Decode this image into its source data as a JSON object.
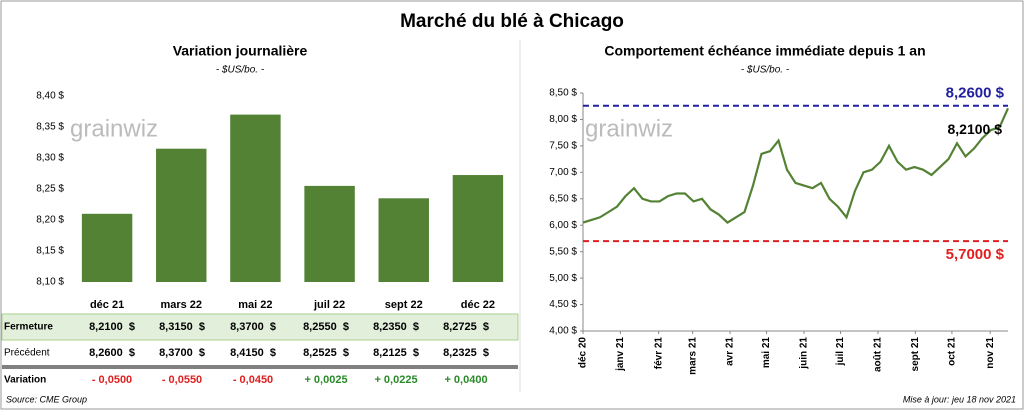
{
  "title": "Marché du blé à Chicago",
  "watermark": "grainwiz",
  "source": "Source: CME Group",
  "updated": "Mise à jour: jeu 18 nov 2021",
  "chart_data": [
    {
      "type": "bar",
      "title": "Variation journalière",
      "subtitle": "- $US/bo. -",
      "categories": [
        "déc 21",
        "mars 22",
        "mai 22",
        "juil 22",
        "sept 22",
        "déc 22"
      ],
      "values": [
        8.21,
        8.315,
        8.37,
        8.255,
        8.235,
        8.2725
      ],
      "color": "#548235",
      "ylim": [
        8.1,
        8.4
      ],
      "yticks": [
        {
          "value": 8.1,
          "label": "8,10 $"
        },
        {
          "value": 8.15,
          "label": "8,15 $"
        },
        {
          "value": 8.2,
          "label": "8,20 $"
        },
        {
          "value": 8.25,
          "label": "8,25 $"
        },
        {
          "value": 8.3,
          "label": "8,30 $"
        },
        {
          "value": 8.35,
          "label": "8,35 $"
        },
        {
          "value": 8.4,
          "label": "8,40 $"
        }
      ]
    },
    {
      "type": "line",
      "title": "Comportement  échéance immédiate depuis 1 an",
      "subtitle": "- $US/bo. -",
      "series": [
        {
          "color": "#548235",
          "values": [
            6.05,
            6.1,
            6.15,
            6.25,
            6.35,
            6.55,
            6.7,
            6.5,
            6.45,
            6.45,
            6.55,
            6.6,
            6.6,
            6.45,
            6.5,
            6.3,
            6.2,
            6.05,
            6.15,
            6.25,
            6.75,
            7.35,
            7.4,
            7.6,
            7.05,
            6.8,
            6.75,
            6.7,
            6.8,
            6.5,
            6.35,
            6.15,
            6.65,
            7.0,
            7.05,
            7.2,
            7.5,
            7.2,
            7.05,
            7.1,
            7.05,
            6.95,
            7.1,
            7.25,
            7.55,
            7.3,
            7.45,
            7.65,
            7.8,
            7.85,
            8.21
          ]
        }
      ],
      "xlim": [
        0,
        50
      ],
      "xticks": [
        {
          "value": 0,
          "label": "déc 20"
        },
        {
          "value": 4.4,
          "label": "janv 21"
        },
        {
          "value": 8.9,
          "label": "févr 21"
        },
        {
          "value": 12.9,
          "label": "mars 21"
        },
        {
          "value": 17.3,
          "label": "avr 21"
        },
        {
          "value": 21.6,
          "label": "mai 21"
        },
        {
          "value": 26,
          "label": "juin 21"
        },
        {
          "value": 30.3,
          "label": "juil 21"
        },
        {
          "value": 34.7,
          "label": "août 21"
        },
        {
          "value": 39.1,
          "label": "sept 21"
        },
        {
          "value": 43.4,
          "label": "oct 21"
        },
        {
          "value": 47.9,
          "label": "nov 21"
        }
      ],
      "ylim": [
        4.0,
        8.5
      ],
      "yticks": [
        {
          "value": 4.0,
          "label": "4,00 $"
        },
        {
          "value": 4.5,
          "label": "4,50 $"
        },
        {
          "value": 5.0,
          "label": "5,00 $"
        },
        {
          "value": 5.5,
          "label": "5,50 $"
        },
        {
          "value": 6.0,
          "label": "6,00 $"
        },
        {
          "value": 6.5,
          "label": "6,50 $"
        },
        {
          "value": 7.0,
          "label": "7,00 $"
        },
        {
          "value": 7.5,
          "label": "7,50 $"
        },
        {
          "value": 8.0,
          "label": "8,00 $"
        },
        {
          "value": 8.5,
          "label": "8,50 $"
        }
      ],
      "reference_lines": [
        {
          "value": 8.26,
          "label": "8,2600 $",
          "color": "#2020a0"
        },
        {
          "value": 5.7,
          "label": "5,7000 $",
          "color": "#e02020"
        }
      ],
      "last_label": "8,2100 $"
    }
  ],
  "table": {
    "rows": [
      [
        "Fermeture",
        "8,2100  $",
        "8,3150  $",
        "8,3700  $",
        "8,2550  $",
        "8,2350  $",
        "8,2725  $"
      ],
      [
        "Précédent",
        "8,2600  $",
        "8,3700  $",
        "8,4150  $",
        "8,2525  $",
        "8,2125  $",
        "8,2325  $"
      ],
      [
        "Variation",
        "- 0,0500",
        "- 0,0550",
        "- 0,0450",
        "+ 0,0025",
        "+ 0,0225",
        "+ 0,0400"
      ]
    ]
  }
}
